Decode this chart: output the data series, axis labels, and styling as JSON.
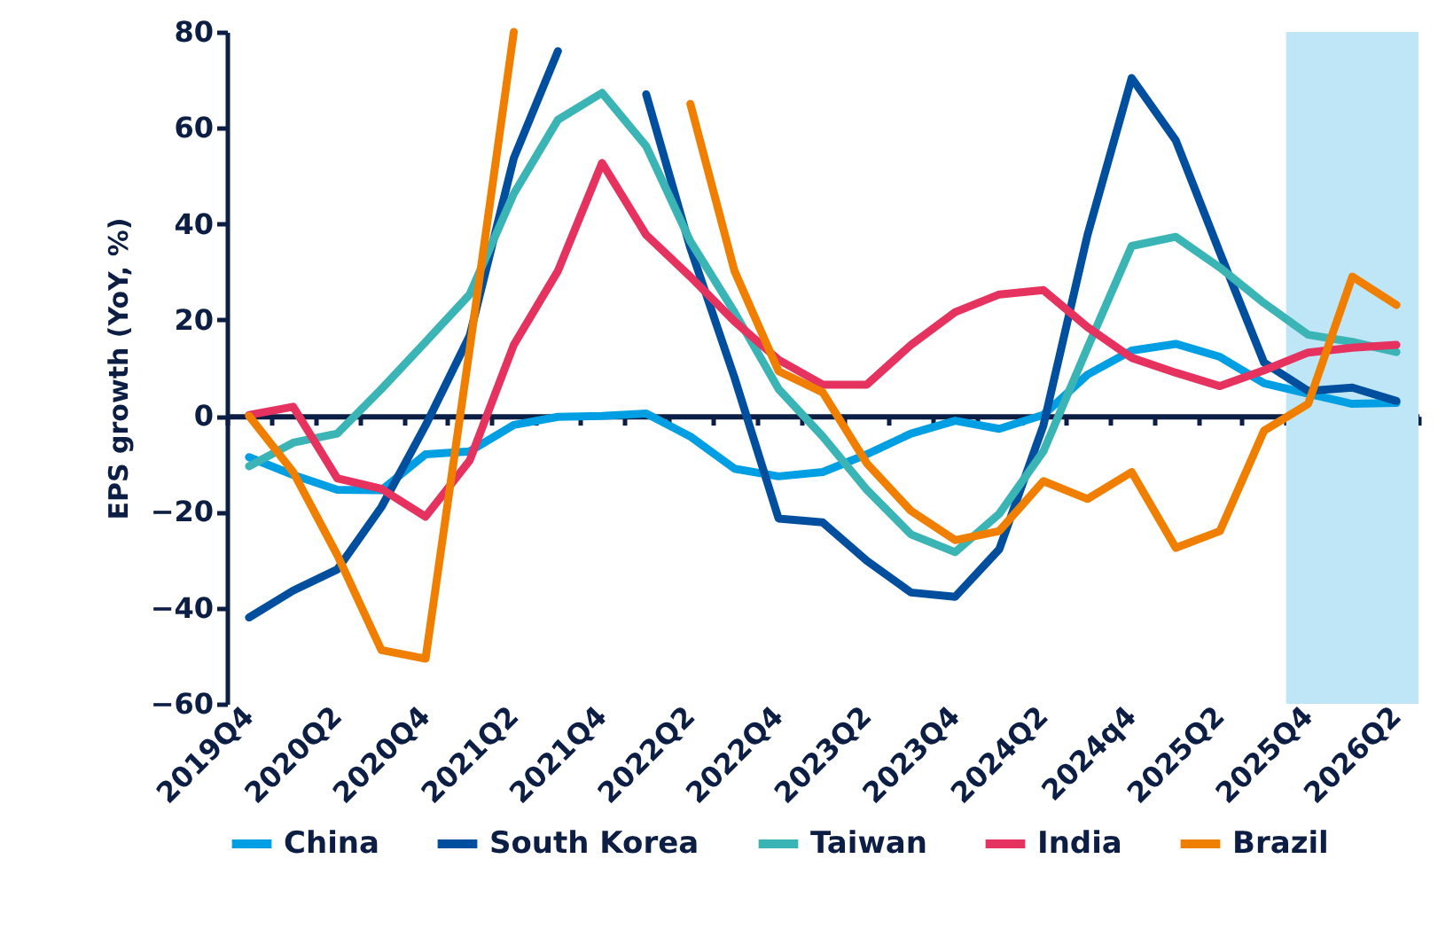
{
  "chart_data": {
    "type": "line",
    "ylabel": "EPS growth (YoY, %)",
    "categories": [
      "2019Q4",
      null,
      "2020Q2",
      null,
      "2020Q4",
      null,
      "2021Q2",
      null,
      "2021Q4",
      null,
      "2022Q2",
      null,
      "2022Q4",
      null,
      "2023Q2",
      null,
      "2023Q4",
      null,
      "2024Q2",
      null,
      "2024q4",
      null,
      "2025Q2",
      null,
      "2025Q4",
      null,
      "2026Q2"
    ],
    "series": [
      {
        "name": "China",
        "color": "#009fe3",
        "values": [
          -8.6,
          -12.3,
          -15.4,
          -15.5,
          -8,
          -7.4,
          -1.9,
          -0.2,
          0,
          0.5,
          -4.3,
          -11,
          -12.6,
          -11.7,
          -8,
          -3.7,
          -1,
          -2.7,
          0.2,
          8.6,
          13.6,
          15,
          12.3,
          6.8,
          4.6,
          2.5,
          2.7
        ]
      },
      {
        "name": "South Korea",
        "color": "#004f9f",
        "values": [
          -42,
          -36.4,
          -32,
          -19,
          -2,
          16.7,
          53.7,
          76,
          null,
          67,
          35,
          8,
          -21.4,
          -22.2,
          -30.2,
          -36.8,
          -37.7,
          -27.8,
          -2,
          37.7,
          70.4,
          57.4,
          34,
          11.1,
          5.2,
          5.9,
          3.1
        ]
      },
      {
        "name": "Taiwan",
        "color": "#3bb4b5",
        "values": [
          -10.5,
          -5.6,
          -3.7,
          5.6,
          15.4,
          25.3,
          46.3,
          61.7,
          67.3,
          56.2,
          36.4,
          21.6,
          5.6,
          -4.3,
          -15.4,
          -24.7,
          -28.4,
          -20.4,
          -7.4,
          14.2,
          35.4,
          37.3,
          30.9,
          23.5,
          16.9,
          15.4,
          13.3
        ]
      },
      {
        "name": "India",
        "color": "#e5325f",
        "values": [
          0.2,
          1.9,
          -13,
          -15.2,
          -21,
          -9.3,
          14.8,
          30.2,
          52.7,
          37.7,
          29,
          19.7,
          11.7,
          6.5,
          6.5,
          14.8,
          21.6,
          25.3,
          26.2,
          18.5,
          12.1,
          9,
          6.2,
          9.5,
          13.2,
          14.2,
          14.8
        ]
      },
      {
        "name": "Brazil",
        "color": "#f07f00",
        "values": [
          0,
          -11.7,
          -29,
          -48.8,
          -50.6,
          14,
          80,
          null,
          null,
          null,
          65,
          30.2,
          9.3,
          4.9,
          -9.9,
          -19.8,
          -25.9,
          -24,
          -13.6,
          -17.3,
          -11.7,
          -27.5,
          -24,
          -3.1,
          2.5,
          29,
          23.1
        ]
      }
    ],
    "ylim": [
      -60,
      80
    ],
    "yticks": [
      -60,
      -40,
      -20,
      0,
      20,
      40,
      60,
      80
    ],
    "bands": [
      {
        "axis": "x",
        "from": "2025Q4",
        "to": "2026Q2",
        "color": "#bfe6f6"
      }
    ],
    "grid": false,
    "legend": "bottom",
    "line_style": "solid",
    "marker": "none"
  }
}
